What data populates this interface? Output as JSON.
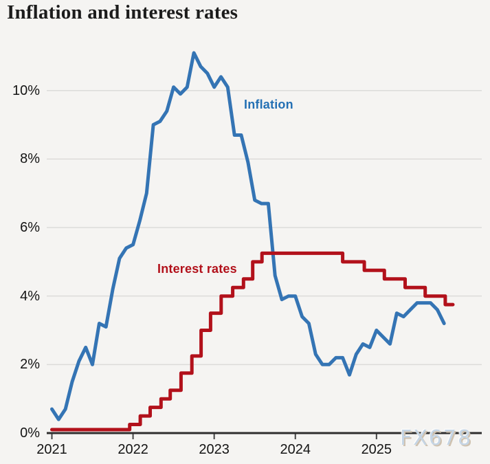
{
  "title": "Inflation and interest rates",
  "watermark": "FX678",
  "series_labels": {
    "inflation": "Inflation",
    "rates": "Interest rates"
  },
  "y_axis": {
    "tick_labels": [
      "0%",
      "2%",
      "4%",
      "6%",
      "8%",
      "10%"
    ],
    "tick_values": [
      0,
      2,
      4,
      6,
      8,
      10
    ]
  },
  "x_axis": {
    "tick_labels": [
      "2021",
      "2022",
      "2023",
      "2024",
      "2025"
    ]
  },
  "colors": {
    "background": "#f5f4f2",
    "inflation_line": "#3474b4",
    "inflation_label": "#2470b4",
    "rates_line": "#b2111b",
    "gridline": "#dcdbd9",
    "axis_line": "#2e2e2e",
    "tick_mark": "#444444",
    "axis_text": "#141414",
    "title_text": "#1c1c1c",
    "watermark_text": "#c5d5e5"
  },
  "chart_data": {
    "type": "line",
    "title": "Inflation and interest rates",
    "xlabel": "",
    "ylabel": "",
    "x_range": [
      "2021-01",
      "2025-12"
    ],
    "ylim": [
      0,
      11.5
    ],
    "grid": "horizontal",
    "legend_position": "inline-annotations",
    "series": [
      {
        "name": "Inflation",
        "unit": "%",
        "style": "line",
        "frequency": "monthly",
        "start": "2021-01",
        "values": [
          0.7,
          0.4,
          0.7,
          1.5,
          2.1,
          2.5,
          2.0,
          3.2,
          3.1,
          4.2,
          5.1,
          5.4,
          5.5,
          6.2,
          7.0,
          9.0,
          9.1,
          9.4,
          10.1,
          9.9,
          10.1,
          11.1,
          10.7,
          10.5,
          10.1,
          10.4,
          10.1,
          8.7,
          8.7,
          7.9,
          6.8,
          6.7,
          6.7,
          4.6,
          3.9,
          4.0,
          4.0,
          3.4,
          3.2,
          2.3,
          2.0,
          2.0,
          2.2,
          2.2,
          1.7,
          2.3,
          2.6,
          2.5,
          3.0,
          2.8,
          2.6,
          3.5,
          3.4,
          3.6,
          3.8,
          3.8,
          3.8,
          3.6,
          3.2
        ]
      },
      {
        "name": "Interest rates",
        "unit": "%",
        "style": "step",
        "steps": [
          {
            "date": "2021-01-01",
            "rate": 0.1
          },
          {
            "date": "2021-12-16",
            "rate": 0.25
          },
          {
            "date": "2022-02-03",
            "rate": 0.5
          },
          {
            "date": "2022-03-17",
            "rate": 0.75
          },
          {
            "date": "2022-05-05",
            "rate": 1.0
          },
          {
            "date": "2022-06-16",
            "rate": 1.25
          },
          {
            "date": "2022-08-04",
            "rate": 1.75
          },
          {
            "date": "2022-09-22",
            "rate": 2.25
          },
          {
            "date": "2022-11-03",
            "rate": 3.0
          },
          {
            "date": "2022-12-15",
            "rate": 3.5
          },
          {
            "date": "2023-02-02",
            "rate": 4.0
          },
          {
            "date": "2023-03-23",
            "rate": 4.25
          },
          {
            "date": "2023-05-11",
            "rate": 4.5
          },
          {
            "date": "2023-06-22",
            "rate": 5.0
          },
          {
            "date": "2023-08-03",
            "rate": 5.25
          },
          {
            "date": "2024-08-01",
            "rate": 5.0
          },
          {
            "date": "2024-11-07",
            "rate": 4.75
          },
          {
            "date": "2025-02-06",
            "rate": 4.5
          },
          {
            "date": "2025-05-08",
            "rate": 4.25
          },
          {
            "date": "2025-08-07",
            "rate": 4.0
          },
          {
            "date": "2025-11-06",
            "rate": 3.75
          }
        ],
        "end": "2025-12-10"
      }
    ]
  }
}
